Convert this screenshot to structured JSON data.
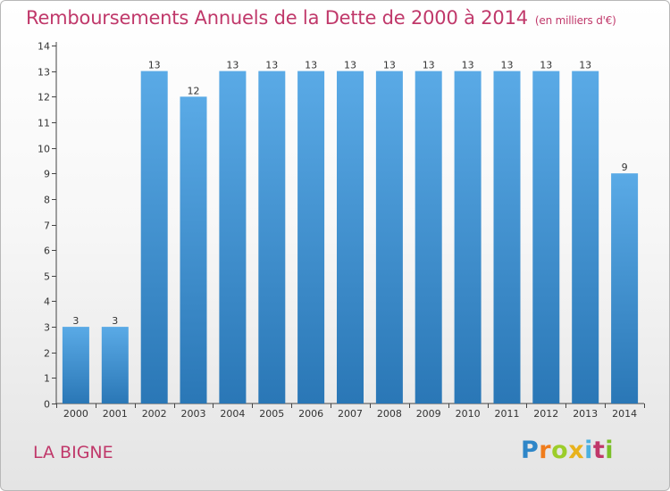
{
  "header": {
    "title": "Remboursements Annuels de la Dette de 2000 à 2014",
    "unit": "(en milliers d'€)"
  },
  "footer": {
    "commune": "LA BIGNE",
    "logo_text": "Proxiti"
  },
  "chart_data": {
    "type": "bar",
    "categories": [
      "2000",
      "2001",
      "2002",
      "2003",
      "2004",
      "2005",
      "2006",
      "2007",
      "2008",
      "2009",
      "2010",
      "2011",
      "2012",
      "2013",
      "2014"
    ],
    "values": [
      3,
      3,
      13,
      12,
      13,
      13,
      13,
      13,
      13,
      13,
      13,
      13,
      13,
      13,
      9
    ],
    "data_labels": [
      "3",
      "3",
      "13",
      "12",
      "13",
      "13",
      "13",
      "13",
      "13",
      "13",
      "13",
      "13",
      "13",
      "13",
      "9"
    ],
    "yticks": [
      0,
      1,
      2,
      3,
      4,
      5,
      6,
      7,
      8,
      9,
      10,
      11,
      12,
      13,
      14
    ],
    "ylim": [
      0,
      14
    ],
    "grid": false,
    "bar_color_top": "#5aaae6",
    "bar_color_bottom": "#2a77b6",
    "accent_color": "#c0386a"
  }
}
